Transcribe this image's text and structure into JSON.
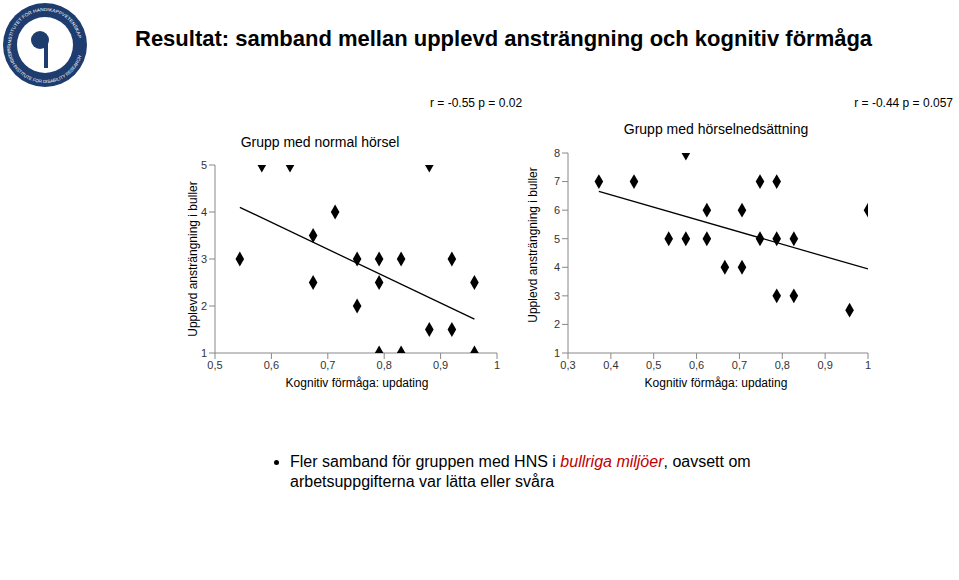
{
  "title": "Resultat: samband mellan upplevd ansträngning och kognitiv förmåga",
  "logo": [
    "INSTITUTET FÖR HANDIKAPPVETENSKAP",
    "SWEDISH INSTITUTE FOR DISABILITY RESEARCH"
  ],
  "chart_data": [
    {
      "type": "scatter",
      "title": "Grupp med normal hörsel",
      "annotation": "r = -0.55  p = 0.02",
      "x_label": "Kognitiv förmåga: updating",
      "y_label": "Upplevd ansträngning i buller",
      "xlim": [
        0.5,
        1
      ],
      "xticks": [
        {
          "value": 0.5,
          "label": "0,5"
        },
        {
          "value": 0.6,
          "label": "0,6"
        },
        {
          "value": 0.7,
          "label": "0,7"
        },
        {
          "value": 0.8,
          "label": "0,8"
        },
        {
          "value": 0.9,
          "label": "0,9"
        },
        1
      ],
      "ylim": [
        1,
        5
      ],
      "yticks": [
        1,
        2,
        3,
        4,
        5
      ],
      "series": [
        {
          "type": "scatter",
          "marker": "diamond",
          "color": "#000000",
          "x": [
            0.544,
            0.583,
            0.633,
            0.674,
            0.674,
            0.713,
            0.752,
            0.752,
            0.791,
            0.791,
            0.791,
            0.83,
            0.83,
            0.88,
            0.88,
            0.92,
            0.92,
            0.96,
            0.96
          ],
          "values": [
            3,
            5,
            5,
            3.5,
            2.5,
            4,
            3,
            2,
            1,
            3,
            2.5,
            3,
            1,
            5,
            1.5,
            3,
            1.5,
            2.5,
            1
          ]
        },
        {
          "type": "line",
          "color": "#000000",
          "x": [
            0.544,
            0.96
          ],
          "values": [
            4.1,
            1.72
          ]
        }
      ]
    },
    {
      "type": "scatter",
      "title": "Grupp med hörselnedsättning",
      "annotation": "r = -0.44  p = 0.057",
      "x_label": "Kognitiv förmåga: updating",
      "y_label": "Upplevd ansträngning i buller",
      "xlim": [
        0.3,
        1
      ],
      "xticks": [
        {
          "value": 0.3,
          "label": "0,3"
        },
        {
          "value": 0.4,
          "label": "0,4"
        },
        {
          "value": 0.5,
          "label": "0,5"
        },
        {
          "value": 0.6,
          "label": "0,6"
        },
        {
          "value": 0.7,
          "label": "0,7"
        },
        {
          "value": 0.8,
          "label": "0,8"
        },
        {
          "value": 0.9,
          "label": "0,9"
        },
        1
      ],
      "ylim": [
        1,
        8
      ],
      "yticks": [
        1,
        2,
        3,
        4,
        5,
        6,
        7,
        8
      ],
      "series": [
        {
          "type": "scatter",
          "marker": "diamond",
          "color": "#000000",
          "x": [
            0.372,
            0.454,
            0.575,
            0.535,
            0.575,
            0.624,
            0.624,
            0.666,
            0.706,
            0.706,
            0.748,
            0.748,
            0.787,
            0.787,
            0.787,
            0.827,
            0.827,
            0.957,
            1.0
          ],
          "values": [
            7,
            7,
            8,
            5,
            5,
            6,
            5,
            4,
            6,
            4,
            7,
            5,
            7,
            5,
            3,
            5,
            3,
            2.5,
            6
          ]
        },
        {
          "type": "line",
          "color": "#000000",
          "x": [
            0.372,
            1.0
          ],
          "values": [
            6.66,
            3.94
          ]
        }
      ]
    }
  ],
  "bullet": [
    {
      "text": "Fler samband för gruppen med HNS i "
    },
    {
      "text": "bullriga miljöer",
      "color": "#c00000",
      "style": "italic"
    },
    {
      "text": ", oavsett om arbetsuppgifterna var lätta eller svåra"
    }
  ]
}
